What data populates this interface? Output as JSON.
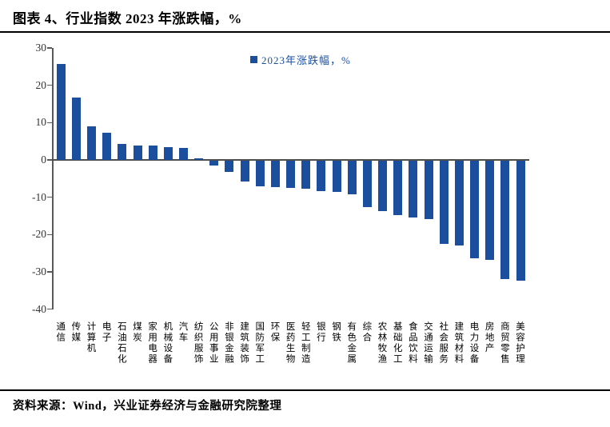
{
  "header": {
    "title": "图表 4、行业指数 2023 年涨跌幅，%"
  },
  "footer": {
    "source": "资料来源：Wind，兴业证券经济与金融研究院整理"
  },
  "colors": {
    "bar": "#1B4E9C",
    "legend_text": "#1B4E9C",
    "axis": "#595959",
    "text": "#000000"
  },
  "chart_data": {
    "type": "bar",
    "title": "图表 4、行业指数 2023 年涨跌幅，%",
    "legend": "2023年涨跌幅，%",
    "legend_position": "top-center",
    "grid": false,
    "ylim": [
      -40,
      30
    ],
    "yticks": [
      30,
      20,
      10,
      0,
      -10,
      -20,
      -30,
      -40
    ],
    "bar_color": "#1B4E9C",
    "categories": [
      "通信",
      "传媒",
      "计算机",
      "电子",
      "石油石化",
      "煤炭",
      "家用电器",
      "机械设备",
      "汽车",
      "纺织服饰",
      "公用事业",
      "非银金融",
      "建筑装饰",
      "国防军工",
      "环保",
      "医药生物",
      "轻工制造",
      "银行",
      "钢铁",
      "有色金属",
      "综合",
      "农林牧渔",
      "基础化工",
      "食品饮料",
      "交通运输",
      "社会服务",
      "建筑材料",
      "电力设备",
      "房地产",
      "商贸零售",
      "美容护理"
    ],
    "values": [
      25.8,
      16.8,
      9.0,
      7.2,
      4.3,
      3.9,
      3.9,
      3.4,
      3.3,
      0.5,
      -1.4,
      -3.1,
      -5.6,
      -7.0,
      -7.1,
      -7.4,
      -7.5,
      -8.1,
      -8.4,
      -9.0,
      -12.5,
      -13.6,
      -14.7,
      -15.2,
      -15.8,
      -22.3,
      -22.8,
      -26.3,
      -26.6,
      -31.7,
      -32.3
    ]
  }
}
